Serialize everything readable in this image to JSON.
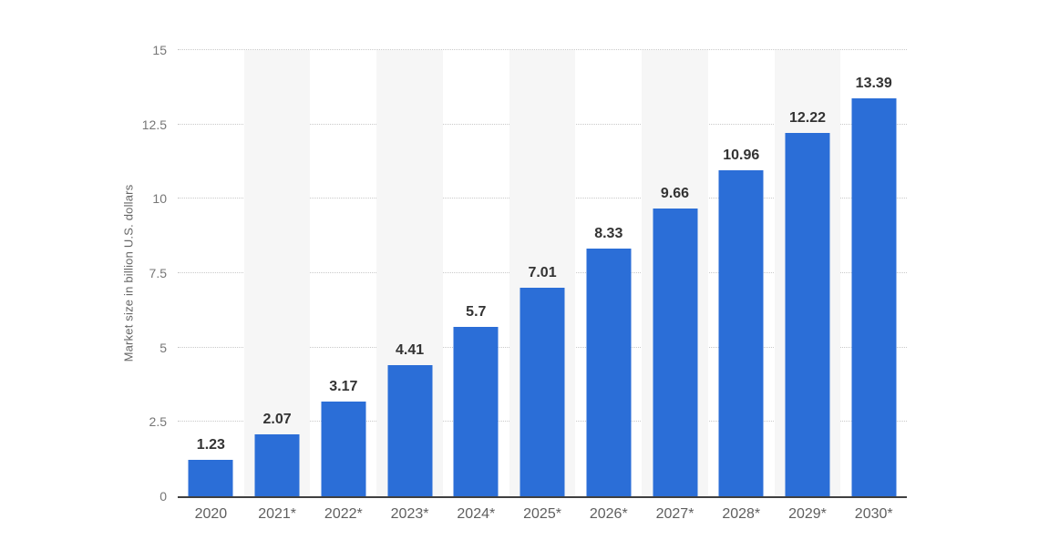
{
  "chart_data": {
    "type": "bar",
    "title": "",
    "xlabel": "",
    "ylabel": "Market size in billion U.S. dollars",
    "categories": [
      "2020",
      "2021*",
      "2022*",
      "2023*",
      "2024*",
      "2025*",
      "2026*",
      "2027*",
      "2028*",
      "2029*",
      "2030*"
    ],
    "values": [
      1.23,
      2.07,
      3.17,
      4.41,
      5.7,
      7.01,
      8.33,
      9.66,
      10.96,
      12.22,
      13.39
    ],
    "value_labels": [
      "1.23",
      "2.07",
      "3.17",
      "4.41",
      "5.7",
      "7.01",
      "8.33",
      "9.66",
      "10.96",
      "12.22",
      "13.39"
    ],
    "ylim": [
      0,
      15
    ],
    "y_tick_step": 2.5,
    "y_tick_labels": [
      "0",
      "2.5",
      "5",
      "7.5",
      "10",
      "12.5",
      "15"
    ],
    "grid": "horizontal-dotted",
    "legend": "none",
    "colors": {
      "bar": "#2b6ed7",
      "stripe": "#f6f6f6",
      "gridline": "#c9c9c9",
      "axis_line": "#404040",
      "y_tick_text": "#767676",
      "x_tick_text": "#5f5f5f",
      "value_label_text": "#333333",
      "background": "#ffffff"
    },
    "striped_column_indices": [
      1,
      3,
      5,
      7,
      9
    ]
  }
}
